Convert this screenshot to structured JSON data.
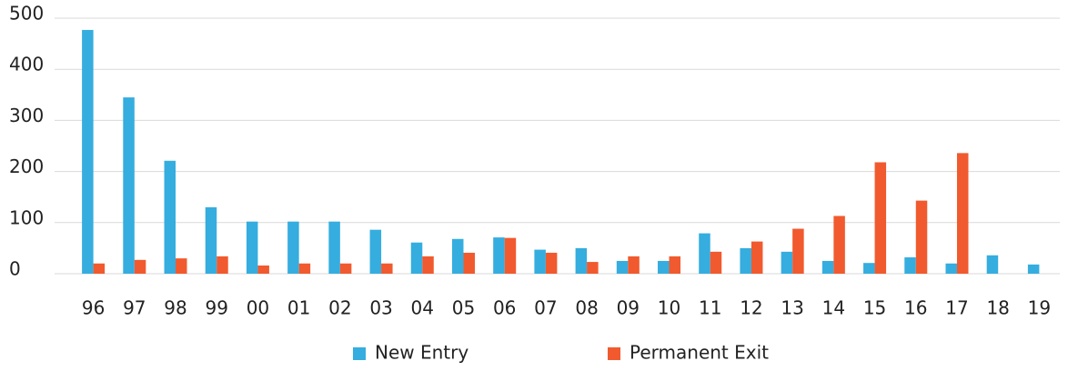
{
  "chart_data": {
    "type": "bar",
    "categories": [
      "96",
      "97",
      "98",
      "99",
      "00",
      "01",
      "02",
      "03",
      "04",
      "05",
      "06",
      "07",
      "08",
      "09",
      "10",
      "11",
      "12",
      "13",
      "14",
      "15",
      "16",
      "17",
      "18",
      "19"
    ],
    "series": [
      {
        "name": "New Entry",
        "color": "#35addf",
        "values": [
          477,
          345,
          221,
          130,
          102,
          102,
          102,
          86,
          61,
          68,
          71,
          47,
          50,
          25,
          25,
          79,
          50,
          43,
          25,
          21,
          32,
          20,
          36,
          18
        ]
      },
      {
        "name": "Permanent Exit",
        "color": "#f15a2e",
        "values": [
          20,
          27,
          30,
          34,
          16,
          20,
          20,
          20,
          34,
          41,
          70,
          41,
          23,
          34,
          34,
          43,
          63,
          88,
          113,
          218,
          143,
          236,
          null,
          null
        ]
      }
    ],
    "ylim": [
      0,
      500
    ],
    "yticks": [
      0,
      100,
      200,
      300,
      400,
      500
    ],
    "grid": true,
    "legend": "bottom"
  }
}
